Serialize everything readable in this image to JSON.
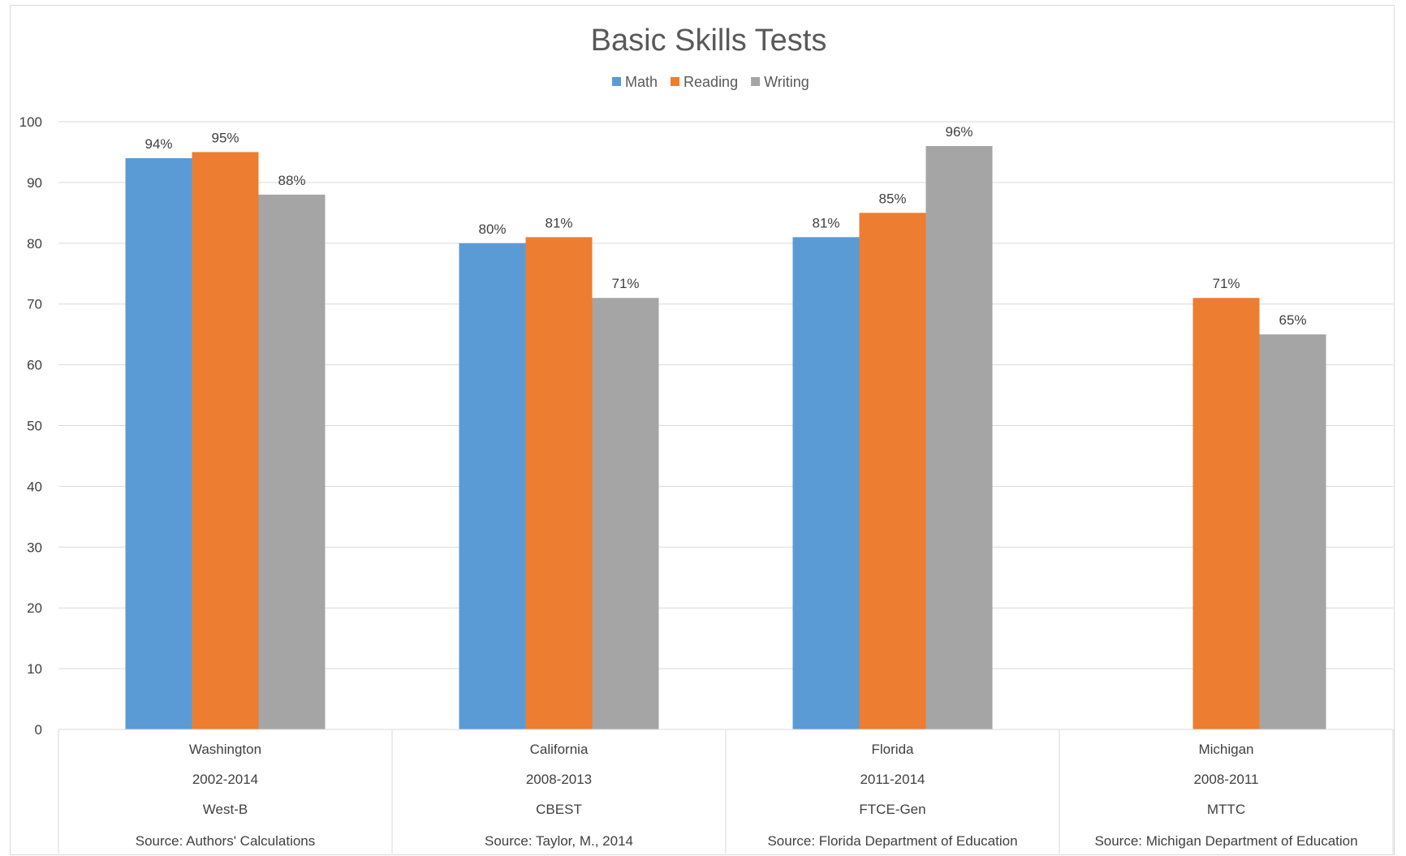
{
  "chart_data": {
    "type": "bar",
    "title": "Basic Skills Tests",
    "xlabel": "",
    "ylabel": "",
    "ylim": [
      0,
      100
    ],
    "yticks": [
      0,
      10,
      20,
      30,
      40,
      50,
      60,
      70,
      80,
      90,
      100
    ],
    "grid": true,
    "legend_position": "top",
    "categories": [
      {
        "label": "Washington",
        "period": "2002-2014",
        "test": "West-B",
        "source": "Source: Authors' Calculations"
      },
      {
        "label": "California",
        "period": "2008-2013",
        "test": "CBEST",
        "source": "Source: Taylor, M., 2014"
      },
      {
        "label": "Florida",
        "period": "2011-2014",
        "test": "FTCE-Gen",
        "source": "Source: Florida Department of Education"
      },
      {
        "label": "Michigan",
        "period": "2008-2011",
        "test": "MTTC",
        "source": "Source: Michigan Department of Education"
      }
    ],
    "series": [
      {
        "name": "Math",
        "color": "#5b9bd5",
        "values": [
          94,
          80,
          81,
          null
        ],
        "labels": [
          "94%",
          "80%",
          "81%",
          ""
        ]
      },
      {
        "name": "Reading",
        "color": "#ed7d31",
        "values": [
          95,
          81,
          85,
          71
        ],
        "labels": [
          "95%",
          "81%",
          "85%",
          "71%"
        ]
      },
      {
        "name": "Writing",
        "color": "#a5a5a5",
        "values": [
          88,
          71,
          96,
          65
        ],
        "labels": [
          "88%",
          "71%",
          "96%",
          "65%"
        ]
      }
    ]
  }
}
